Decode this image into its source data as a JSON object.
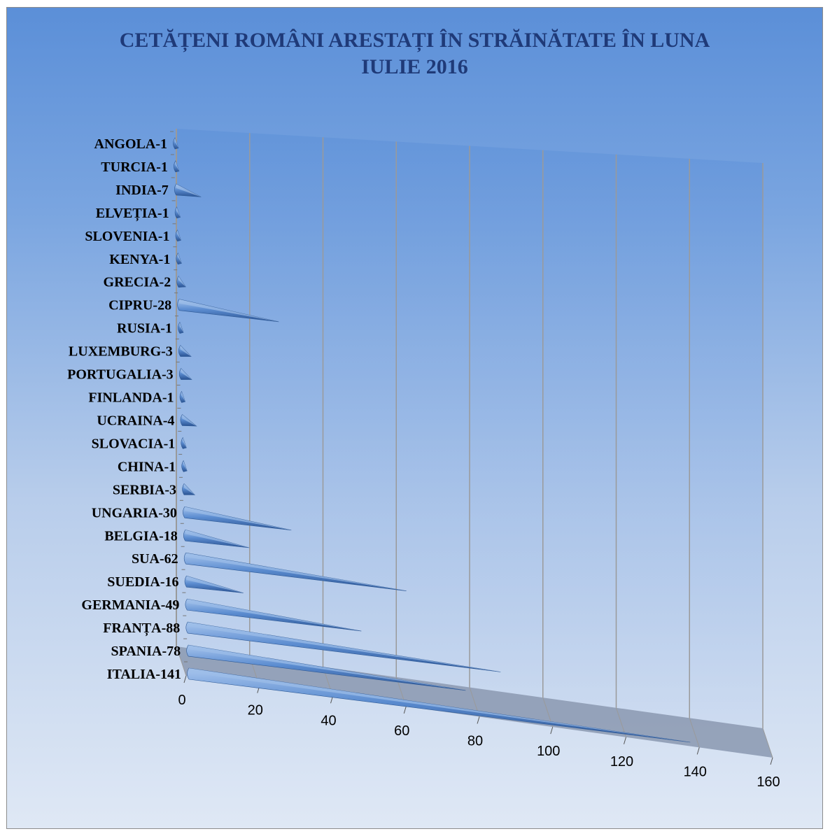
{
  "chart_data": {
    "type": "bar",
    "orientation": "horizontal",
    "style": "3d-cone",
    "title_line1": "CETĂȚENI ROMÂNI ARESTAȚI ÎN STRĂINĂTATE ÎN LUNA",
    "title_line2": "IULIE 2016",
    "categories": [
      "ANGOLA-1",
      "TURCIA-1",
      "INDIA-7",
      "ELVEȚIA-1",
      "SLOVENIA-1",
      "KENYA-1",
      "GRECIA-2",
      "CIPRU-28",
      "RUSIA-1",
      "LUXEMBURG-3",
      "PORTUGALIA-3",
      "FINLANDA-1",
      "UCRAINA-4",
      "SLOVACIA-1",
      "CHINA-1",
      "SERBIA-3",
      "UNGARIA-30",
      "BELGIA-18",
      "SUA-62",
      "SUEDIA-16",
      "GERMANIA-49",
      "FRANȚA-88",
      "SPANIA-78",
      "ITALIA-141"
    ],
    "values": [
      1,
      1,
      7,
      1,
      1,
      1,
      2,
      28,
      1,
      3,
      3,
      1,
      4,
      1,
      1,
      3,
      30,
      18,
      62,
      16,
      49,
      88,
      78,
      141
    ],
    "xlim": [
      0,
      160
    ],
    "xticks": [
      "0",
      "20",
      "40",
      "60",
      "80",
      "100",
      "120",
      "140",
      "160"
    ],
    "grid": true,
    "legend": "none",
    "colors": {
      "bar": "#4f81bd",
      "bar_light": "#9cbde8",
      "bar_dark": "#2f5a96",
      "grid": "#9a9a9a",
      "floor": "#8a98b0"
    }
  }
}
